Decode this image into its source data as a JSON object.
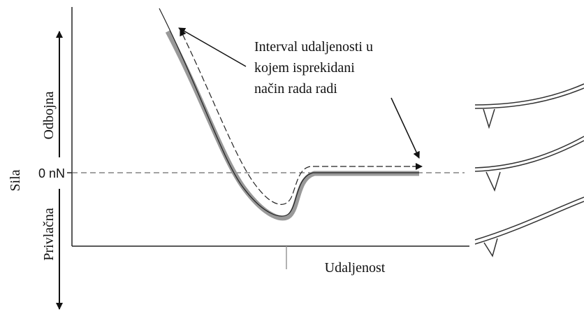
{
  "axis": {
    "y_label": "Sila",
    "repulsive": "Odbojna",
    "attractive": "Privlačna",
    "zero": "0 nN",
    "x_label": "Udaljenost"
  },
  "annotation": {
    "lines": [
      "Interval udaljenosti u",
      "kojem isprekidani",
      "način rada radi"
    ]
  }
}
